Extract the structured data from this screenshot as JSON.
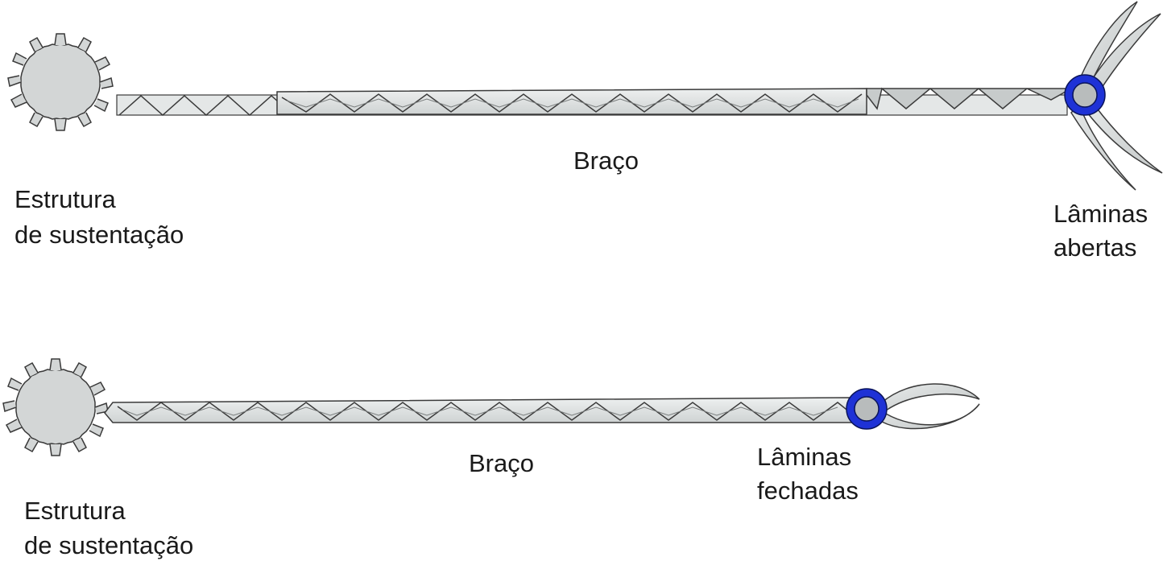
{
  "top": {
    "gear_label_line1": "Estrutura",
    "gear_label_line2": "de sustentação",
    "arm_label": "Braço",
    "blades_label_line1": "Lâminas",
    "blades_label_line2": "abertas"
  },
  "bottom": {
    "gear_label_line1": "Estrutura",
    "gear_label_line2": "de sustentação",
    "arm_label": "Braço",
    "blades_label_line1": "Lâminas",
    "blades_label_line2": "fechadas"
  },
  "colors": {
    "gear_fill": "#d3d6d6",
    "rack_fill": "#d6d9d9",
    "pivot_ring": "#1e32d6",
    "pivot_center": "#b8bcbc",
    "stroke": "#3a3a3a"
  }
}
